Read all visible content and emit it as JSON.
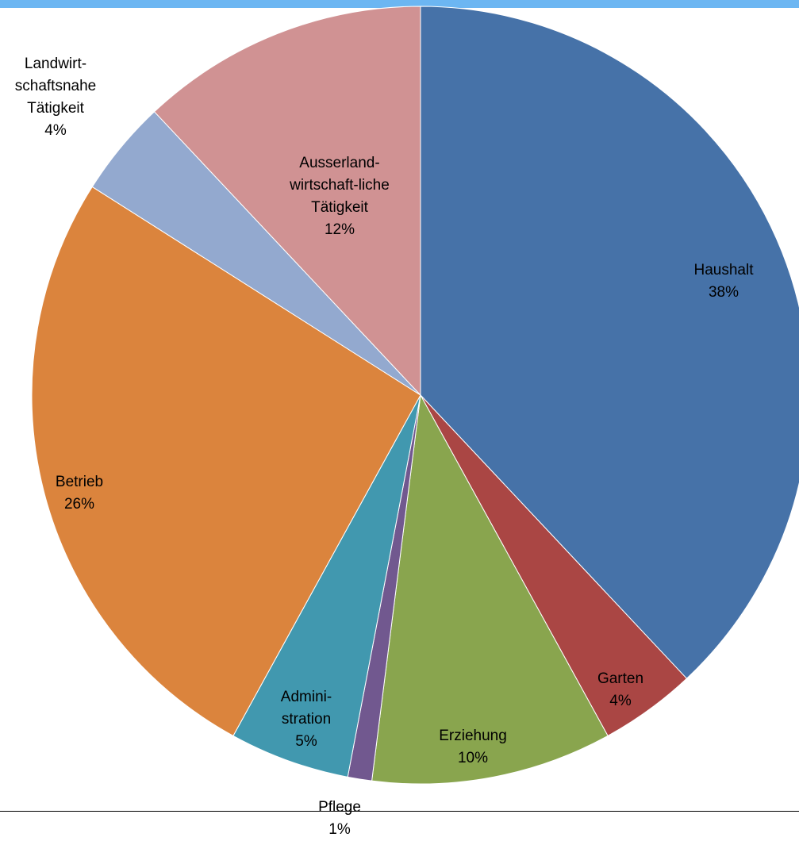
{
  "chart_data": {
    "type": "pie",
    "categories": [
      "Haushalt",
      "Garten",
      "Erziehung",
      "Pflege",
      "Admini-\nstration",
      "Betrieb",
      "Landwirt-\nschaftsnahe\nTätigkeit",
      "Ausserland-\nwirtschaft-liche\nTätigkeit"
    ],
    "values": [
      38,
      4,
      10,
      1,
      5,
      26,
      4,
      12
    ],
    "value_labels": [
      "38%",
      "4%",
      "10%",
      "1%",
      "5%",
      "26%",
      "4%",
      "12%"
    ],
    "colors": [
      "#4672a8",
      "#aa4644",
      "#89a54e",
      "#71588f",
      "#4198af",
      "#db843d",
      "#93a9cf",
      "#d09293"
    ]
  }
}
